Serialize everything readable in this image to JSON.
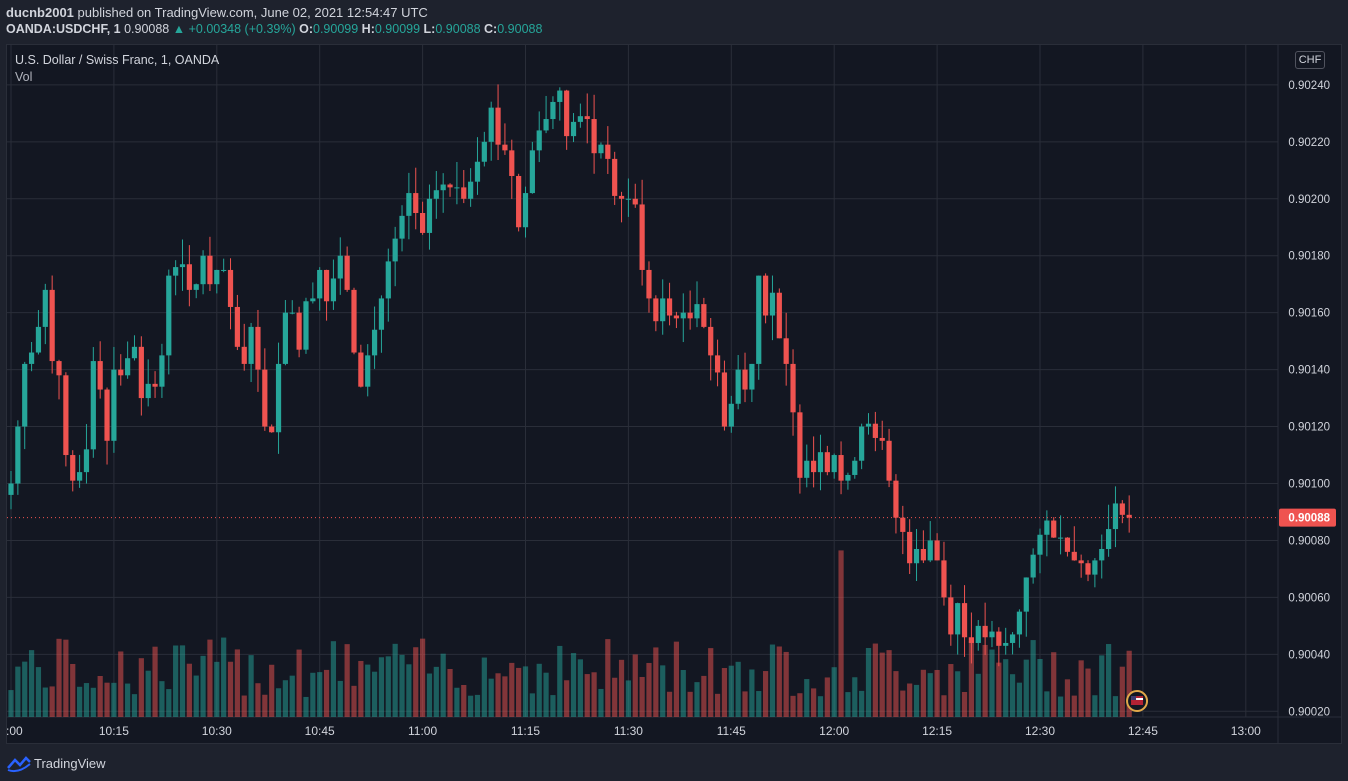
{
  "header": {
    "publisher": "ducnb2001",
    "published_text": "published on TradingView.com, June 02, 2021 12:54:47 UTC",
    "symbol": "OANDA:USDCHF, 1",
    "last": "0.90088",
    "change": "▲ +0.00348 (+0.39%)",
    "o_label": "O:",
    "o_value": "0.90099",
    "h_label": "H:",
    "h_value": "0.90099",
    "l_label": "L:",
    "l_value": "0.90088",
    "c_label": "C:",
    "c_value": "0.90088"
  },
  "chart_title": "U.S. Dollar / Swiss Franc, 1, OANDA",
  "volume_label": "Vol",
  "currency_label": "CHF",
  "footer": {
    "brand": "TradingView"
  },
  "colors": {
    "up": "#26a69a",
    "down": "#ef5350",
    "price_line": "#ef5350",
    "grid": "#2a2e39"
  },
  "chart_data": {
    "type": "candlestick",
    "x_start": "10:00",
    "interval_minutes": 1,
    "xticks": [
      ":00",
      "10:15",
      "10:30",
      "10:45",
      "11:00",
      "11:15",
      "11:30",
      "11:45",
      "12:00",
      "12:15",
      "12:30",
      "12:45",
      "13:00"
    ],
    "yticks": [
      "0.90240",
      "0.90220",
      "0.90200",
      "0.90180",
      "0.90160",
      "0.90140",
      "0.90120",
      "0.90100",
      "0.90080",
      "0.90060",
      "0.90040",
      "0.90020"
    ],
    "ylim": [
      0.90018,
      0.90254
    ],
    "current_price": 0.90088,
    "current_price_label": "0.90088",
    "candles_close": [
      0.901,
      0.9012,
      0.90142,
      0.90146,
      0.90155,
      0.90168,
      0.90143,
      0.90138,
      0.9011,
      0.90101,
      0.90104,
      0.90112,
      0.90143,
      0.90133,
      0.90115,
      0.9014,
      0.90138,
      0.90144,
      0.90148,
      0.9013,
      0.90135,
      0.90134,
      0.90145,
      0.90173,
      0.90176,
      0.90177,
      0.90168,
      0.9017,
      0.9018,
      0.9017,
      0.90175,
      0.90175,
      0.90162,
      0.90148,
      0.90142,
      0.90155,
      0.9014,
      0.9012,
      0.90118,
      0.90142,
      0.9016,
      0.9016,
      0.90147,
      0.90164,
      0.90165,
      0.90175,
      0.90164,
      0.90172,
      0.9018,
      0.90168,
      0.90146,
      0.90134,
      0.90145,
      0.90154,
      0.90165,
      0.90178,
      0.90186,
      0.90194,
      0.90202,
      0.90195,
      0.90188,
      0.902,
      0.90203,
      0.90205,
      0.90204,
      0.90204,
      0.902,
      0.90206,
      0.90213,
      0.9022,
      0.90232,
      0.90219,
      0.90217,
      0.90208,
      0.9019,
      0.90202,
      0.90217,
      0.90224,
      0.90228,
      0.90234,
      0.90238,
      0.90222,
      0.90227,
      0.90229,
      0.90228,
      0.90216,
      0.90219,
      0.90214,
      0.90201,
      0.902,
      0.902,
      0.90198,
      0.90175,
      0.90165,
      0.90157,
      0.90165,
      0.90159,
      0.90158,
      0.9016,
      0.90158,
      0.90163,
      0.90155,
      0.90145,
      0.90139,
      0.9012,
      0.90128,
      0.9014,
      0.90133,
      0.90142,
      0.90173,
      0.90159,
      0.90167,
      0.90151,
      0.90142,
      0.90125,
      0.90102,
      0.90108,
      0.90104,
      0.90111,
      0.90104,
      0.9011,
      0.90101,
      0.90103,
      0.90108,
      0.9012,
      0.90121,
      0.90116,
      0.90115,
      0.90101,
      0.90088,
      0.90083,
      0.90072,
      0.90077,
      0.90073,
      0.9008,
      0.90073,
      0.9006,
      0.90047,
      0.90058,
      0.90046,
      0.90044,
      0.9005,
      0.90046,
      0.90048,
      0.90043,
      0.90044,
      0.90047,
      0.90055,
      0.90067,
      0.90075,
      0.90082,
      0.90087,
      0.90081,
      0.90081,
      0.90076,
      0.90073,
      0.90072,
      0.90068,
      0.90073,
      0.90077,
      0.90084,
      0.90093,
      0.90089,
      0.90088
    ],
    "volume": {
      "max_shown_units": 1,
      "note_ylim_share": 0.22
    }
  }
}
